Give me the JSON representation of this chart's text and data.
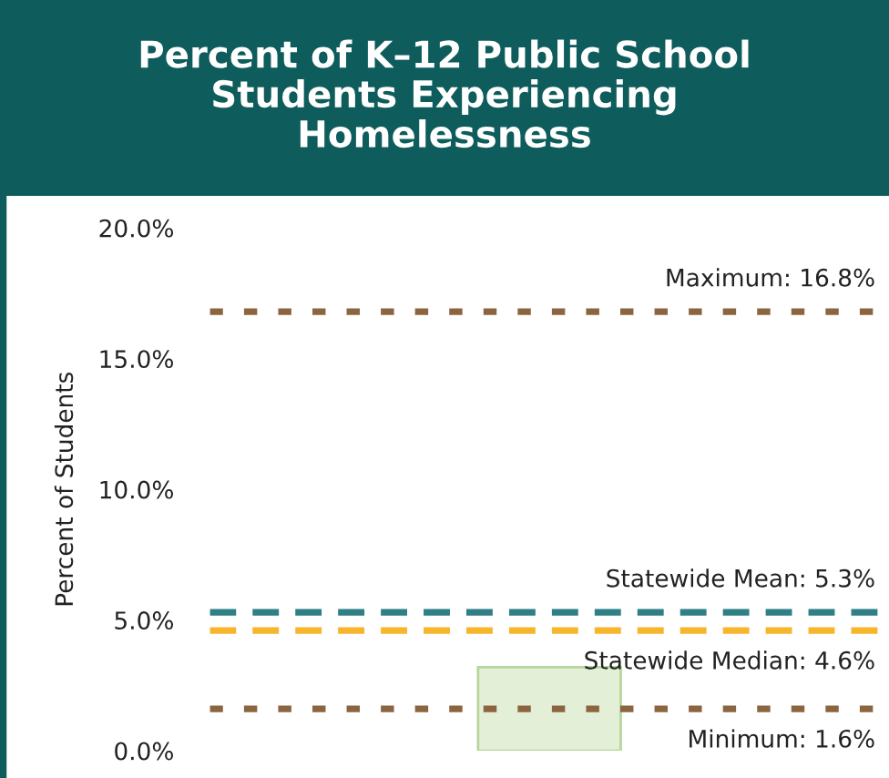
{
  "chart_data": {
    "type": "bar",
    "title": "Percent of K–12 Public School\nStudents Experiencing\nHomelessness",
    "ylabel": "Percent of Students",
    "categories": [
      null
    ],
    "values": [
      3.2
    ],
    "color": "#e4efd8",
    "ylim": [
      0,
      20
    ],
    "yticks": [
      {
        "value": 0,
        "label": "0.0%"
      },
      {
        "value": 5,
        "label": "5.0%"
      },
      {
        "value": 10,
        "label": "10.0%"
      },
      {
        "value": 15,
        "label": "15.0%"
      },
      {
        "value": 20,
        "label": "20.0%"
      }
    ],
    "grid": false,
    "ref_lines": [
      {
        "axis": "y",
        "value": 16.8,
        "label": "Maximum: 16.8%",
        "color": "#8b6540",
        "line_style": "dotted"
      },
      {
        "axis": "y",
        "value": 5.3,
        "label": "Statewide Mean: 5.3%",
        "color": "#2f7f86",
        "line_style": "dashed"
      },
      {
        "axis": "y",
        "value": 4.6,
        "label": "Statewide Median: 4.6%",
        "color": "#f7b52c",
        "line_style": "dashed"
      },
      {
        "axis": "y",
        "value": 1.6,
        "label": "Minimum: 1.6%",
        "color": "#8b6540",
        "line_style": "dotted"
      }
    ]
  }
}
